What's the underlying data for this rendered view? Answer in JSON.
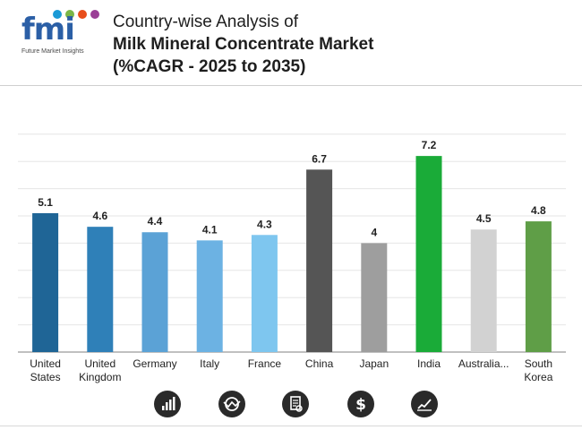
{
  "brand": {
    "logo_text": "fmi",
    "tagline": "Future Market Insights",
    "dot_colors": [
      "#1a9ad6",
      "#7ab648",
      "#e84e1b",
      "#9b3f96"
    ]
  },
  "title": {
    "line1": "Country-wise Analysis of",
    "line2": "Milk Mineral Concentrate Market",
    "line3": "(%CAGR - 2025 to 2035)"
  },
  "chart_data": {
    "type": "bar",
    "title": "Country-wise Analysis of Milk Mineral Concentrate Market (%CAGR - 2025 to 2035)",
    "xlabel": "",
    "ylabel": "",
    "grid": true,
    "ylim": [
      0,
      8
    ],
    "categories": [
      {
        "label": [
          "United",
          "States"
        ],
        "value": 5.1,
        "value_label": "5.1",
        "color": "#1f6596"
      },
      {
        "label": [
          "United",
          "Kingdom"
        ],
        "value": 4.6,
        "value_label": "4.6",
        "color": "#2f80b8"
      },
      {
        "label": [
          "Germany"
        ],
        "value": 4.4,
        "value_label": "4.4",
        "color": "#5ba2d6"
      },
      {
        "label": [
          "Italy"
        ],
        "value": 4.1,
        "value_label": "4.1",
        "color": "#6cb2e3"
      },
      {
        "label": [
          "France"
        ],
        "value": 4.3,
        "value_label": "4.3",
        "color": "#7ec6ef"
      },
      {
        "label": [
          "China"
        ],
        "value": 6.7,
        "value_label": "6.7",
        "color": "#555555"
      },
      {
        "label": [
          "Japan"
        ],
        "value": 4.0,
        "value_label": "4",
        "color": "#9e9e9e"
      },
      {
        "label": [
          "India"
        ],
        "value": 7.2,
        "value_label": "7.2",
        "color": "#1aab38"
      },
      {
        "label": [
          "Australia..."
        ],
        "value": 4.5,
        "value_label": "4.5",
        "color": "#d2d2d2"
      },
      {
        "label": [
          "South",
          "Korea"
        ],
        "value": 4.8,
        "value_label": "4.8",
        "color": "#5f9e47"
      }
    ]
  },
  "footer_icons": [
    "bar-chart-icon",
    "globe-chart-icon",
    "document-icon",
    "dollar-icon",
    "trend-chart-icon"
  ]
}
